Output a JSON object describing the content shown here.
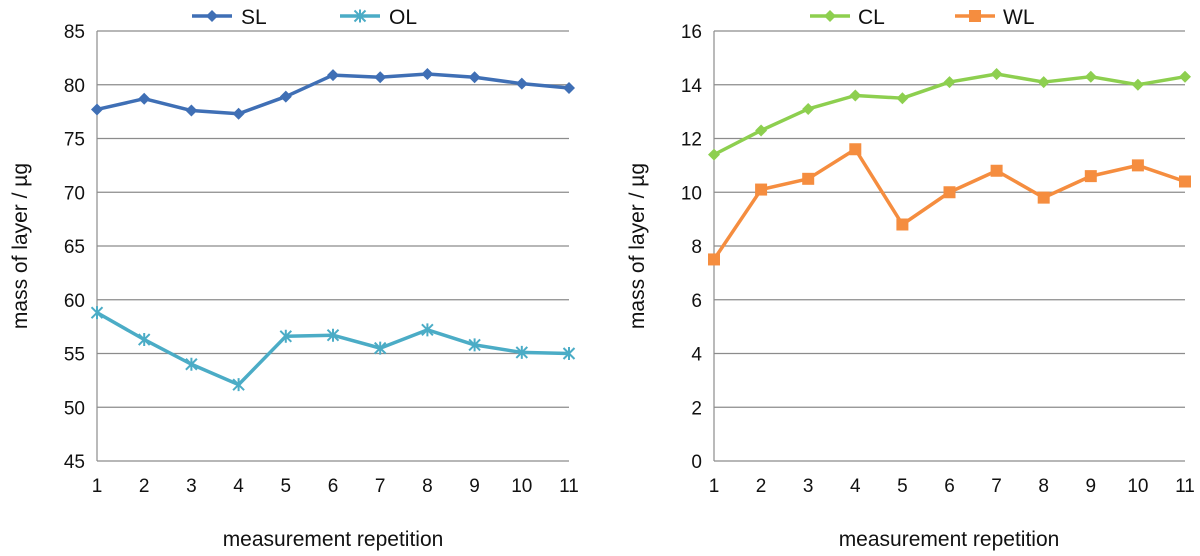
{
  "chart_data": [
    {
      "type": "line",
      "x": [
        1,
        2,
        3,
        4,
        5,
        6,
        7,
        8,
        9,
        10,
        11
      ],
      "x_ticks": [
        "1",
        "2",
        "3",
        "4",
        "5",
        "6",
        "7",
        "8",
        "9",
        "10",
        "11"
      ],
      "xlabel": "measurement repetition",
      "ylabel": "mass of layer / µg",
      "ylim": [
        45,
        85
      ],
      "y_ticks": [
        45,
        50,
        55,
        60,
        65,
        70,
        75,
        80,
        85
      ],
      "y_tick_labels": [
        "45",
        "50",
        "55",
        "60",
        "65",
        "70",
        "75",
        "80",
        "85"
      ],
      "grid": true,
      "legend_position": "top",
      "series": [
        {
          "name": "SL",
          "marker": "diamond",
          "color": "#3F6FB5",
          "values": [
            77.7,
            78.7,
            77.6,
            77.3,
            78.9,
            80.9,
            80.7,
            81.0,
            80.7,
            80.1,
            79.7
          ]
        },
        {
          "name": "OL",
          "marker": "asterisk",
          "color": "#4BACC6",
          "values": [
            58.8,
            56.3,
            54.0,
            52.1,
            56.6,
            56.7,
            55.5,
            57.2,
            55.8,
            55.1,
            55.0
          ]
        }
      ]
    },
    {
      "type": "line",
      "x": [
        1,
        2,
        3,
        4,
        5,
        6,
        7,
        8,
        9,
        10,
        11
      ],
      "x_ticks": [
        "1",
        "2",
        "3",
        "4",
        "5",
        "6",
        "7",
        "8",
        "9",
        "10",
        "11"
      ],
      "xlabel": "measurement repetition",
      "ylabel": "mass of layer / µg",
      "ylim": [
        0,
        16
      ],
      "y_ticks": [
        0,
        2,
        4,
        6,
        8,
        10,
        12,
        14,
        16
      ],
      "y_tick_labels": [
        "0",
        "2",
        "4",
        "6",
        "8",
        "10",
        "12",
        "14",
        "16"
      ],
      "grid": true,
      "legend_position": "top",
      "series": [
        {
          "name": "CL",
          "marker": "diamond",
          "color": "#8DCF4F",
          "values": [
            11.4,
            12.3,
            13.1,
            13.6,
            13.5,
            14.1,
            14.4,
            14.1,
            14.3,
            14.0,
            14.3
          ]
        },
        {
          "name": "WL",
          "marker": "square",
          "color": "#F58D3F",
          "values": [
            7.5,
            10.1,
            10.5,
            11.6,
            8.8,
            10.0,
            10.8,
            9.8,
            10.6,
            11.0,
            10.4
          ]
        }
      ]
    }
  ]
}
